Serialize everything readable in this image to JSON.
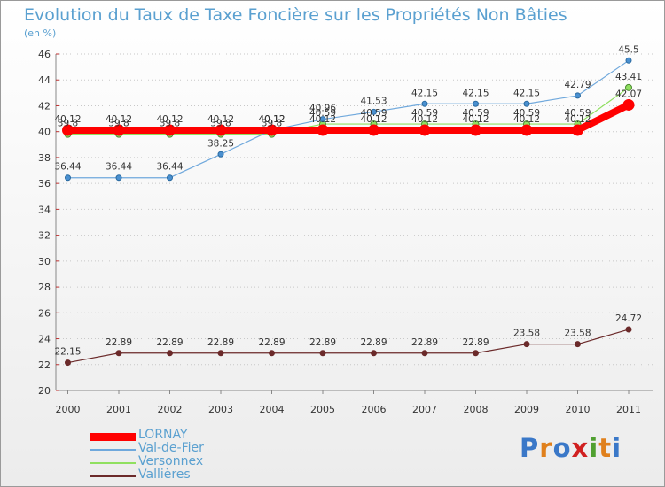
{
  "chart_data": {
    "type": "line",
    "title": "Evolution du Taux de Taxe Foncière sur les Propriétés Non Bâties",
    "ylabel": "(en %)",
    "xlabel": "",
    "ylim": [
      20,
      46
    ],
    "yticks": [
      20,
      22,
      24,
      26,
      28,
      30,
      32,
      34,
      36,
      38,
      40,
      42,
      44,
      46
    ],
    "categories": [
      "2000",
      "2001",
      "2002",
      "2003",
      "2004",
      "2005",
      "2006",
      "2007",
      "2008",
      "2009",
      "2010",
      "2011"
    ],
    "series": [
      {
        "name": "Vallières",
        "color": "#6b2a2a",
        "values": [
          22.15,
          22.89,
          22.89,
          22.89,
          22.89,
          22.89,
          22.89,
          22.89,
          22.89,
          23.58,
          23.58,
          24.72
        ],
        "labels": [
          "22.15",
          "22.89",
          "22.89",
          "22.89",
          "22.89",
          "22.89",
          "22.89",
          "22.89",
          "22.89",
          "23.58",
          "23.58",
          "24.72"
        ]
      },
      {
        "name": "Versonnex",
        "color": "#90e060",
        "values": [
          39.8,
          39.8,
          39.8,
          39.8,
          39.8,
          40.59,
          40.59,
          40.59,
          40.59,
          40.59,
          40.59,
          43.41
        ],
        "labels": [
          "39.8",
          "39.8",
          "39.8",
          "39.8",
          "39.8",
          "40.59",
          "40.59",
          "40.59",
          "40.59",
          "40.59",
          "40.59",
          "43.41"
        ]
      },
      {
        "name": "Val-de-Fier",
        "color": "#6fa8dc",
        "values": [
          36.44,
          36.44,
          36.44,
          38.25,
          40.12,
          40.96,
          41.53,
          42.15,
          42.15,
          42.15,
          42.79,
          45.5
        ],
        "labels": [
          "36.44",
          "36.44",
          "36.44",
          "38.25",
          "40.12",
          "40.96",
          "41.53",
          "42.15",
          "42.15",
          "42.15",
          "42.79",
          "45.5"
        ]
      },
      {
        "name": "LORNAY",
        "color": "#ff0000",
        "values": [
          40.12,
          40.12,
          40.12,
          40.12,
          40.12,
          40.12,
          40.12,
          40.12,
          40.12,
          40.12,
          40.12,
          42.07
        ],
        "labels": [
          "40.12",
          "40.12",
          "40.12",
          "40.12",
          "40.12",
          "40.12",
          "40.12",
          "40.12",
          "40.12",
          "40.12",
          "40.12",
          "42.07"
        ]
      }
    ],
    "legend": [
      "LORNAY",
      "Val-de-Fier",
      "Versonnex",
      "Vallières"
    ]
  },
  "branding": {
    "logo_text": "Proxiti",
    "logo_colors": [
      "#3a78c8",
      "#e0801c",
      "#3a78c8",
      "#d02020",
      "#50a030",
      "#e0801c",
      "#3a78c8"
    ]
  }
}
